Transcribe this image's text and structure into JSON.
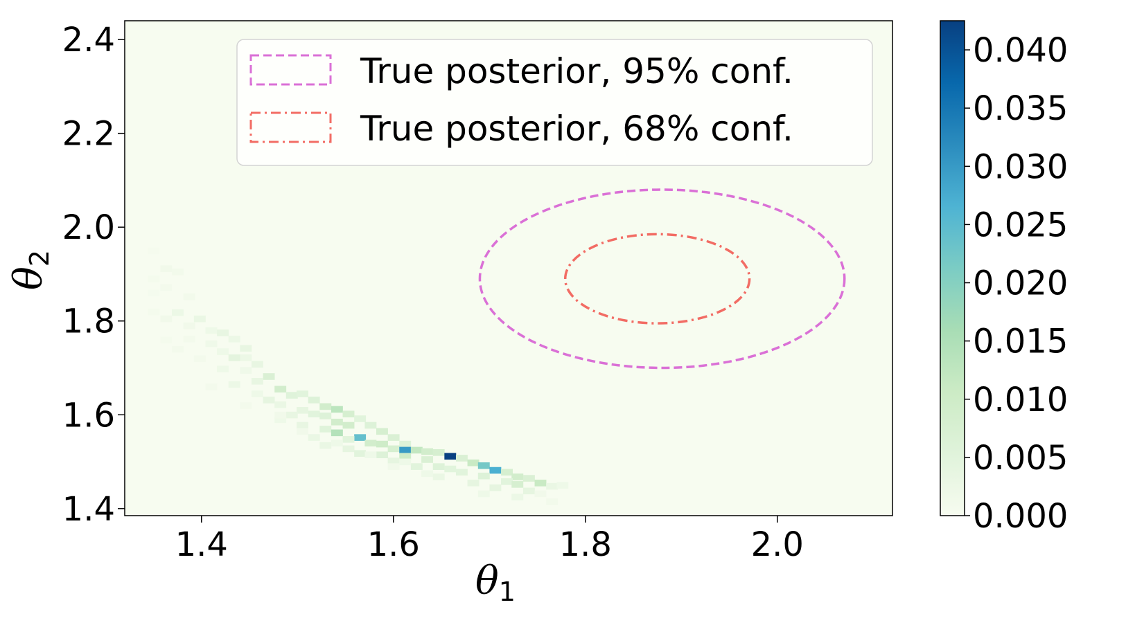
{
  "chart_data": {
    "type": "heatmap",
    "title": "",
    "xlabel": "θ",
    "xlabel_sub": "1",
    "ylabel": "θ",
    "ylabel_sub": "2",
    "xlim": [
      1.32,
      2.12
    ],
    "ylim": [
      1.385,
      2.44
    ],
    "xticks": [
      1.4,
      1.6,
      1.8,
      2.0
    ],
    "xtick_labels": [
      "1.4",
      "1.6",
      "1.8",
      "2.0"
    ],
    "yticks": [
      1.4,
      1.6,
      1.8,
      2.0,
      2.2,
      2.4
    ],
    "ytick_labels": [
      "1.4",
      "1.6",
      "1.8",
      "2.0",
      "2.2",
      "2.4"
    ],
    "grid": false,
    "colormap": "GnBu",
    "colormap_colors": [
      "#f7fcf0",
      "#e0f3db",
      "#ccebc5",
      "#a8ddb5",
      "#7bccc4",
      "#4eb3d3",
      "#2b8cbe",
      "#0868ac",
      "#084081"
    ],
    "colorbar": {
      "min": 0.0,
      "max": 0.0425,
      "ticks": [
        0.0,
        0.005,
        0.01,
        0.015,
        0.02,
        0.025,
        0.03,
        0.035,
        0.04
      ],
      "tick_labels": [
        "0.000",
        "0.005",
        "0.010",
        "0.015",
        "0.020",
        "0.025",
        "0.030",
        "0.035",
        "0.040"
      ]
    },
    "bin_size": [
      0.0118,
      0.0133
    ],
    "cells": [
      [
        1.363,
        1.912,
        0.0015
      ],
      [
        1.375,
        1.905,
        0.0012
      ],
      [
        1.35,
        1.89,
        0.0008
      ],
      [
        1.363,
        1.872,
        0.001
      ],
      [
        1.387,
        1.852,
        0.0012
      ],
      [
        1.375,
        1.818,
        0.0025
      ],
      [
        1.398,
        1.805,
        0.003
      ],
      [
        1.363,
        1.805,
        0.0015
      ],
      [
        1.387,
        1.79,
        0.0015
      ],
      [
        1.41,
        1.78,
        0.002
      ],
      [
        1.422,
        1.775,
        0.0035
      ],
      [
        1.434,
        1.762,
        0.0025
      ],
      [
        1.387,
        1.762,
        0.001
      ],
      [
        1.41,
        1.752,
        0.0018
      ],
      [
        1.446,
        1.742,
        0.0035
      ],
      [
        1.422,
        1.735,
        0.002
      ],
      [
        1.375,
        1.74,
        0.001
      ],
      [
        1.434,
        1.722,
        0.0045
      ],
      [
        1.446,
        1.722,
        0.0025
      ],
      [
        1.458,
        1.708,
        0.0035
      ],
      [
        1.422,
        1.698,
        0.002
      ],
      [
        1.446,
        1.695,
        0.0018
      ],
      [
        1.47,
        1.682,
        0.007
      ],
      [
        1.458,
        1.672,
        0.0035
      ],
      [
        1.434,
        1.665,
        0.0025
      ],
      [
        1.482,
        1.655,
        0.009
      ],
      [
        1.494,
        1.642,
        0.0055
      ],
      [
        1.505,
        1.645,
        0.005
      ],
      [
        1.458,
        1.645,
        0.002
      ],
      [
        1.47,
        1.632,
        0.004
      ],
      [
        1.517,
        1.632,
        0.006
      ],
      [
        1.482,
        1.622,
        0.003
      ],
      [
        1.529,
        1.618,
        0.009
      ],
      [
        1.541,
        1.612,
        0.013
      ],
      [
        1.505,
        1.61,
        0.004
      ],
      [
        1.494,
        1.6,
        0.0035
      ],
      [
        1.517,
        1.602,
        0.005
      ],
      [
        1.553,
        1.602,
        0.008
      ],
      [
        1.529,
        1.598,
        0.006
      ],
      [
        1.565,
        1.592,
        0.005
      ],
      [
        1.482,
        1.59,
        0.002
      ],
      [
        1.541,
        1.585,
        0.009
      ],
      [
        1.553,
        1.578,
        0.009
      ],
      [
        1.505,
        1.578,
        0.0035
      ],
      [
        1.576,
        1.578,
        0.006
      ],
      [
        1.529,
        1.57,
        0.0055
      ],
      [
        1.588,
        1.565,
        0.008
      ],
      [
        1.541,
        1.562,
        0.014
      ],
      [
        1.565,
        1.552,
        0.024
      ],
      [
        1.6,
        1.552,
        0.007
      ],
      [
        1.517,
        1.552,
        0.003
      ],
      [
        1.553,
        1.548,
        0.005
      ],
      [
        1.576,
        1.54,
        0.009
      ],
      [
        1.588,
        1.538,
        0.01
      ],
      [
        1.612,
        1.538,
        0.006
      ],
      [
        1.529,
        1.535,
        0.003
      ],
      [
        1.6,
        1.528,
        0.008
      ],
      [
        1.553,
        1.528,
        0.004
      ],
      [
        1.612,
        1.525,
        0.03
      ],
      [
        1.624,
        1.525,
        0.012
      ],
      [
        1.635,
        1.522,
        0.009
      ],
      [
        1.647,
        1.52,
        0.008
      ],
      [
        1.565,
        1.518,
        0.005
      ],
      [
        1.588,
        1.515,
        0.006
      ],
      [
        1.612,
        1.512,
        0.01
      ],
      [
        1.659,
        1.512,
        0.0425
      ],
      [
        1.671,
        1.508,
        0.007
      ],
      [
        1.635,
        1.505,
        0.007
      ],
      [
        1.6,
        1.502,
        0.004
      ],
      [
        1.683,
        1.498,
        0.011
      ],
      [
        1.694,
        1.492,
        0.022
      ],
      [
        1.647,
        1.49,
        0.006
      ],
      [
        1.624,
        1.49,
        0.005
      ],
      [
        1.659,
        1.485,
        0.005
      ],
      [
        1.706,
        1.482,
        0.027
      ],
      [
        1.718,
        1.478,
        0.008
      ],
      [
        1.671,
        1.478,
        0.005
      ],
      [
        1.694,
        1.47,
        0.006
      ],
      [
        1.729,
        1.468,
        0.009
      ],
      [
        1.741,
        1.465,
        0.007
      ],
      [
        1.647,
        1.468,
        0.003
      ],
      [
        1.718,
        1.458,
        0.005
      ],
      [
        1.753,
        1.455,
        0.011
      ],
      [
        1.683,
        1.455,
        0.004
      ],
      [
        1.729,
        1.452,
        0.008
      ],
      [
        1.765,
        1.448,
        0.003
      ],
      [
        1.776,
        1.45,
        0.002
      ],
      [
        1.706,
        1.445,
        0.004
      ],
      [
        1.741,
        1.438,
        0.004
      ],
      [
        1.694,
        1.432,
        0.002
      ],
      [
        1.729,
        1.425,
        0.0025
      ],
      [
        1.753,
        1.432,
        0.0015
      ],
      [
        1.765,
        1.415,
        0.0012
      ],
      [
        1.635,
        1.475,
        0.002
      ],
      [
        1.6,
        1.49,
        0.0015
      ],
      [
        1.612,
        1.5,
        0.002
      ],
      [
        1.576,
        1.515,
        0.002
      ],
      [
        1.541,
        1.54,
        0.002
      ],
      [
        1.505,
        1.565,
        0.0015
      ],
      [
        1.482,
        1.6,
        0.0015
      ],
      [
        1.446,
        1.62,
        0.001
      ],
      [
        1.41,
        1.66,
        0.001
      ],
      [
        1.398,
        1.72,
        0.001
      ],
      [
        1.363,
        1.76,
        0.0008
      ],
      [
        1.35,
        1.82,
        0.0008
      ],
      [
        1.35,
        1.86,
        0.0006
      ],
      [
        1.35,
        1.95,
        0.0005
      ]
    ],
    "contours": [
      {
        "name": "True posterior, 95% conf.",
        "color": "#da70d6",
        "dash": "dashed",
        "center": [
          1.88,
          1.89
        ],
        "rx": 0.19,
        "ry": 0.19
      },
      {
        "name": "True posterior, 68% conf.",
        "color": "#f26c64",
        "dash": "dashdot",
        "center": [
          1.875,
          1.89
        ],
        "rx": 0.096,
        "ry": 0.095
      }
    ],
    "legend": {
      "placement": "upper center",
      "entries": [
        "True posterior, 95% conf.",
        "True posterior, 68% conf."
      ]
    }
  }
}
